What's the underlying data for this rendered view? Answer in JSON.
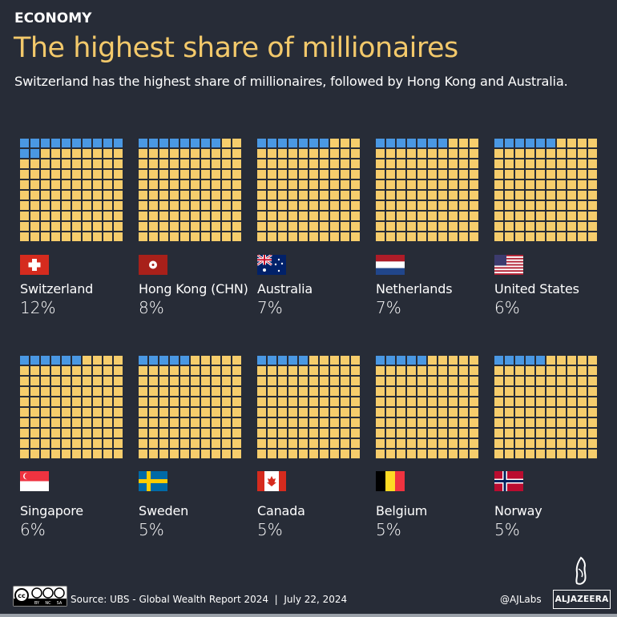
{
  "header": {
    "kicker": "ECONOMY",
    "title": "The highest share of millionaires",
    "subtitle": "Switzerland has the highest share of millionaires, followed by Hong Kong and Australia."
  },
  "colors": {
    "background": "#272c37",
    "filled": "#4a98e3",
    "empty": "#f6cd6c",
    "title": "#f3c96b"
  },
  "chart_data": {
    "type": "waffle",
    "grid": "10x10",
    "unit": "%",
    "items": [
      {
        "country": "Switzerland",
        "value": 12,
        "label": "12%",
        "flag": "switzerland-flag"
      },
      {
        "country": "Hong Kong (CHN)",
        "value": 8,
        "label": "8%",
        "flag": "hong-kong-flag"
      },
      {
        "country": "Australia",
        "value": 7,
        "label": "7%",
        "flag": "australia-flag"
      },
      {
        "country": "Netherlands",
        "value": 7,
        "label": "7%",
        "flag": "netherlands-flag"
      },
      {
        "country": "United States",
        "value": 6,
        "label": "6%",
        "flag": "united-states-flag"
      },
      {
        "country": "Singapore",
        "value": 6,
        "label": "6%",
        "flag": "singapore-flag"
      },
      {
        "country": "Sweden",
        "value": 5,
        "label": "5%",
        "flag": "sweden-flag"
      },
      {
        "country": "Canada",
        "value": 5,
        "label": "5%",
        "flag": "canada-flag"
      },
      {
        "country": "Belgium",
        "value": 5,
        "label": "5%",
        "flag": "belgium-flag"
      },
      {
        "country": "Norway",
        "value": 5,
        "label": "5%",
        "flag": "norway-flag"
      }
    ]
  },
  "footer": {
    "license": "CC BY NC SA",
    "source": "Source: UBS - Global Wealth Report 2024  |  July 22, 2024",
    "handle": "@AJLabs",
    "logo": "ALJAZEERA"
  }
}
